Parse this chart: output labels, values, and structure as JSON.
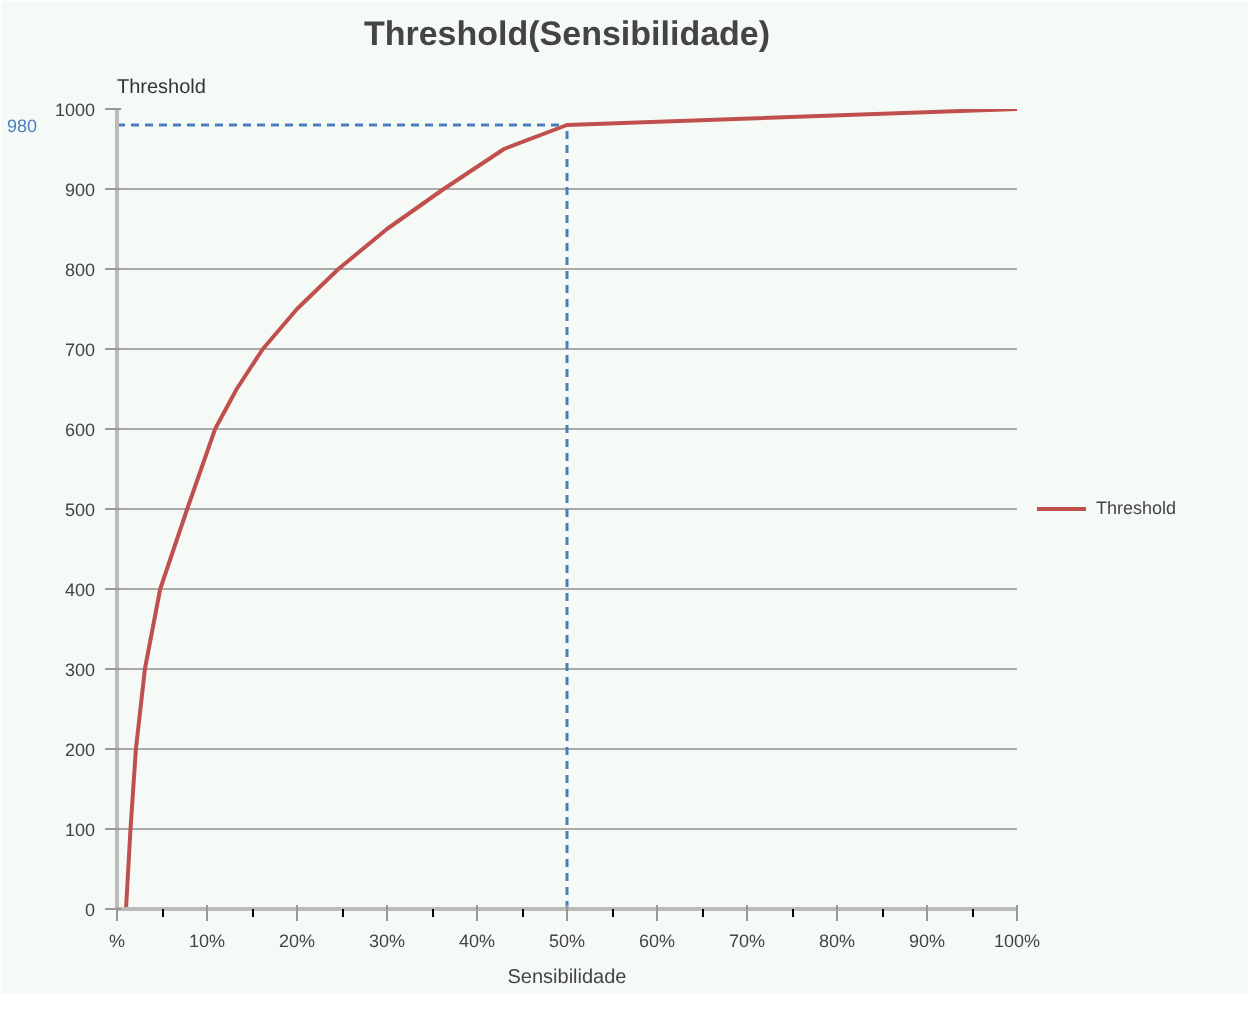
{
  "chart_data": {
    "type": "line",
    "title": "Threshold(Sensibilidade)",
    "xlabel": "Sensibilidade",
    "ylabel": "Threshold",
    "x": [
      1.0,
      1.5,
      2.1,
      3.1,
      4.8,
      7.8,
      10.9,
      13.3,
      16.2,
      20.0,
      24.6,
      30.0,
      36.3,
      43.0,
      50.0,
      100.0
    ],
    "series": [
      {
        "name": "Threshold",
        "color": "#c0504d",
        "values": [
          0,
          100,
          200,
          300,
          400,
          500,
          600,
          650,
          700,
          750,
          800,
          850,
          900,
          950,
          980,
          1000
        ]
      }
    ],
    "xlim": [
      0,
      100
    ],
    "xticks": [
      {
        "value": 0,
        "label": "%"
      },
      {
        "value": 10,
        "label": "10%"
      },
      {
        "value": 20,
        "label": "20%"
      },
      {
        "value": 30,
        "label": "30%"
      },
      {
        "value": 40,
        "label": "40%"
      },
      {
        "value": 50,
        "label": "50%"
      },
      {
        "value": 60,
        "label": "60%"
      },
      {
        "value": 70,
        "label": "70%"
      },
      {
        "value": 80,
        "label": "80%"
      },
      {
        "value": 90,
        "label": "90%"
      },
      {
        "value": 100,
        "label": "100%"
      }
    ],
    "ylim": [
      0,
      1000
    ],
    "yticks": [
      0,
      100,
      200,
      300,
      400,
      500,
      600,
      700,
      800,
      900,
      1000
    ],
    "ref_lines": [
      {
        "axis": "y",
        "value": 980,
        "label": "980",
        "color": "#4a7ebb",
        "line_style": "dashed"
      },
      {
        "axis": "x",
        "value": 50,
        "label": null,
        "color": "#4a7ebb",
        "line_style": "dashed"
      }
    ],
    "grid": "y",
    "legend": "right",
    "line_style": "solid",
    "marker": "none"
  }
}
